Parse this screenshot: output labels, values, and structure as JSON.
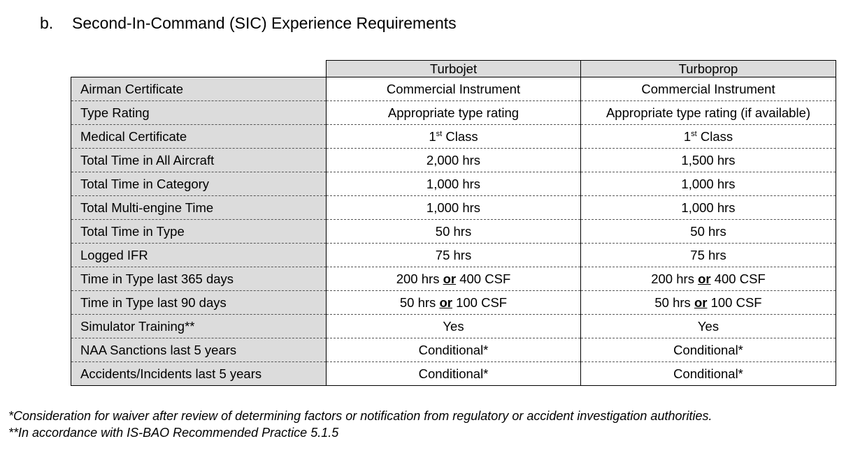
{
  "heading": {
    "label": "b.",
    "title": "Second-In-Command (SIC) Experience Requirements"
  },
  "table": {
    "columns": [
      "Turbojet",
      "Turboprop"
    ],
    "rows": [
      {
        "label": "Airman Certificate",
        "turbojet": "Commercial Instrument",
        "turboprop": "Commercial Instrument"
      },
      {
        "label": "Type Rating",
        "turbojet": "Appropriate type rating",
        "turboprop": "Appropriate type rating (if available)"
      },
      {
        "label": "Medical Certificate",
        "turbojet_num": "1",
        "turbojet_sup": "st",
        "turbojet_rest": " Class",
        "turboprop_num": "1",
        "turboprop_sup": "st",
        "turboprop_rest": " Class"
      },
      {
        "label": "Total Time in All Aircraft",
        "turbojet": "2,000 hrs",
        "turboprop": "1,500 hrs"
      },
      {
        "label": "Total Time in Category",
        "turbojet": "1,000 hrs",
        "turboprop": "1,000 hrs"
      },
      {
        "label": "Total Multi-engine Time",
        "turbojet": "1,000 hrs",
        "turboprop": "1,000 hrs"
      },
      {
        "label": "Total Time in Type",
        "turbojet": "50 hrs",
        "turboprop": "50 hrs"
      },
      {
        "label": "Logged IFR",
        "turbojet": "75 hrs",
        "turboprop": "75 hrs"
      },
      {
        "label": "Time in Type last 365 days",
        "turbojet_a": "200 hrs ",
        "turbojet_or": "or",
        "turbojet_b": " 400 CSF",
        "turboprop_a": "200 hrs ",
        "turboprop_or": "or",
        "turboprop_b": " 400 CSF"
      },
      {
        "label": "Time in Type last 90 days",
        "turbojet_a": "50 hrs ",
        "turbojet_or": "or",
        "turbojet_b": " 100 CSF",
        "turboprop_a": "50 hrs ",
        "turboprop_or": "or",
        "turboprop_b": " 100 CSF"
      },
      {
        "label": "Simulator Training**",
        "turbojet": "Yes",
        "turboprop": "Yes"
      },
      {
        "label": "NAA Sanctions last 5 years",
        "turbojet": "Conditional*",
        "turboprop": "Conditional*"
      },
      {
        "label": "Accidents/Incidents last 5 years",
        "turbojet": "Conditional*",
        "turboprop": "Conditional*"
      }
    ]
  },
  "footnotes": [
    "*Consideration for waiver after review of determining factors or notification from regulatory or accident investigation authorities.",
    "**In accordance with IS-BAO Recommended Practice 5.1.5"
  ]
}
